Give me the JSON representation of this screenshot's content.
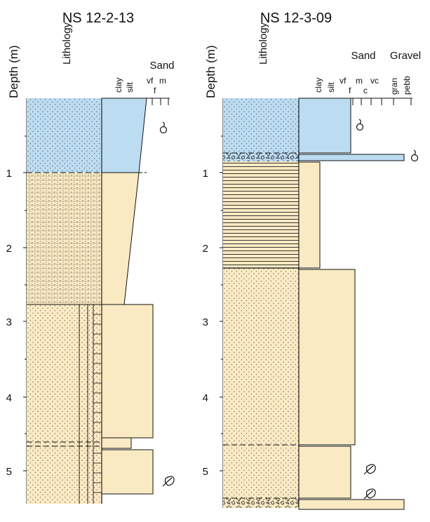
{
  "colors": {
    "blue": "#bcdcf2",
    "sand": "#faeac3",
    "stroke": "#111111"
  },
  "columns": [
    {
      "title": "NS 12-2-13",
      "depth_label": "Depth (m)",
      "lithology_label": "Lithology",
      "grain_size_group_labels": [
        "Sand"
      ],
      "grain_size_labels": [
        "clay",
        "silt",
        "vf",
        "f",
        "m"
      ],
      "depth_ticks": [
        "1",
        "2",
        "3",
        "4",
        "5"
      ],
      "units": [
        {
          "top_m": 0,
          "base_m": 1.0,
          "lithology": "fine sand, stippled",
          "color": "blue",
          "grain_size": "vf"
        },
        {
          "top_m": 1.0,
          "base_m": 2.78,
          "lithology": "laminated sand",
          "color": "sand",
          "grain_size": "fining upward silt–vf"
        },
        {
          "top_m": 2.78,
          "base_m": 4.6,
          "lithology": "sand with vertical structures",
          "color": "sand",
          "grain_size": "f"
        },
        {
          "top_m": 4.6,
          "base_m": 4.74,
          "lithology": "sand",
          "color": "sand",
          "grain_size": "vf"
        },
        {
          "top_m": 4.74,
          "base_m": 5.5,
          "lithology": "sand with vertical structures",
          "color": "sand",
          "grain_size": "f"
        }
      ],
      "symbols": [
        "shell-icon",
        "plant-fragment-icon"
      ]
    },
    {
      "title": "NS 12-3-09",
      "depth_label": "Depth (m)",
      "lithology_label": "Lithology",
      "grain_size_group_labels": [
        "Sand",
        "Gravel"
      ],
      "grain_size_labels": [
        "clay",
        "silt",
        "vf",
        "f",
        "m",
        "c",
        "vc",
        "gran",
        "pebb"
      ],
      "depth_ticks": [
        "1",
        "2",
        "3",
        "4",
        "5"
      ],
      "units": [
        {
          "top_m": 0,
          "base_m": 0.75,
          "lithology": "stippled sand",
          "color": "blue",
          "grain_size": "f"
        },
        {
          "top_m": 0.75,
          "base_m": 0.83,
          "lithology": "gravel lag",
          "color": "blue",
          "grain_size": "pebb"
        },
        {
          "top_m": 0.83,
          "base_m": 2.28,
          "lithology": "laminated mud",
          "color": "sand",
          "grain_size": "silt"
        },
        {
          "top_m": 2.28,
          "base_m": 4.67,
          "lithology": "sand",
          "color": "sand",
          "grain_size": "m"
        },
        {
          "top_m": 4.67,
          "base_m": 5.57,
          "lithology": "sand",
          "color": "sand",
          "grain_size": "f"
        },
        {
          "top_m": 5.57,
          "base_m": 5.72,
          "lithology": "gravel lag",
          "color": "sand",
          "grain_size": "pebb"
        }
      ],
      "symbols": [
        "shell-icon",
        "shell-icon",
        "plant-fragment-icon",
        "plant-fragment-icon"
      ]
    }
  ]
}
